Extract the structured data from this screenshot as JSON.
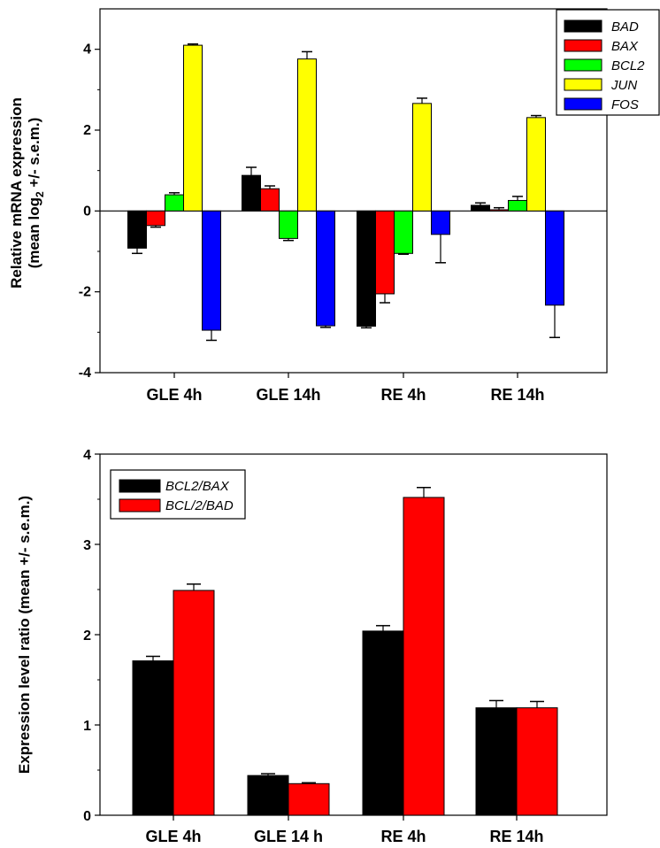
{
  "chart_data": [
    {
      "type": "bar",
      "title": "",
      "xlabel": "",
      "ylabel": "Relative mRNA expression",
      "ylabel_line2": "(mean log",
      "ylabel_sub": "2",
      "ylabel_line2_tail": " +/- s.e.m.)",
      "ylim": [
        -4,
        5
      ],
      "yticks": [
        "-4",
        "-2",
        "0",
        "2",
        "4"
      ],
      "categories": [
        "GLE 4h",
        "GLE 14h",
        "RE 4h",
        "RE 14h"
      ],
      "legend_position": "top-right",
      "series": [
        {
          "name": "BAD",
          "color": "#000000",
          "values": [
            -0.92,
            0.88,
            -2.85,
            0.14
          ],
          "errors": [
            0.13,
            0.2,
            0.04,
            0.06
          ]
        },
        {
          "name": "BAX",
          "color": "#ff0000",
          "values": [
            -0.36,
            0.55,
            -2.05,
            0.03
          ],
          "errors": [
            0.04,
            0.07,
            0.22,
            0.05
          ]
        },
        {
          "name": "BCL2",
          "color": "#00ff00",
          "values": [
            0.4,
            -0.68,
            -1.05,
            0.26
          ],
          "errors": [
            0.05,
            0.05,
            0.02,
            0.1
          ]
        },
        {
          "name": "JUN",
          "color": "#ffff00",
          "values": [
            4.1,
            3.76,
            2.66,
            2.31
          ],
          "errors": [
            0.03,
            0.18,
            0.13,
            0.05
          ]
        },
        {
          "name": "FOS",
          "color": "#0000ff",
          "values": [
            -2.95,
            -2.84,
            -0.58,
            -2.33
          ],
          "errors": [
            0.25,
            0.04,
            0.7,
            0.8
          ]
        }
      ]
    },
    {
      "type": "bar",
      "title": "",
      "xlabel": "",
      "ylabel": "Expression level ratio (mean +/- s.e.m.)",
      "ylim": [
        0,
        4
      ],
      "yticks": [
        "0",
        "1",
        "2",
        "3",
        "4"
      ],
      "categories": [
        "GLE 4h",
        "GLE 14 h",
        "RE 4h",
        "RE 14h"
      ],
      "legend_position": "top-left",
      "series": [
        {
          "name": "BCL2/BAX",
          "color": "#000000",
          "values": [
            1.71,
            0.44,
            2.04,
            1.19
          ],
          "errors": [
            0.05,
            0.02,
            0.06,
            0.08
          ]
        },
        {
          "name": "BCL/2/BAD",
          "color": "#ff0000",
          "values": [
            2.49,
            0.35,
            3.52,
            1.19
          ],
          "errors": [
            0.07,
            0.01,
            0.11,
            0.07
          ]
        }
      ]
    }
  ]
}
